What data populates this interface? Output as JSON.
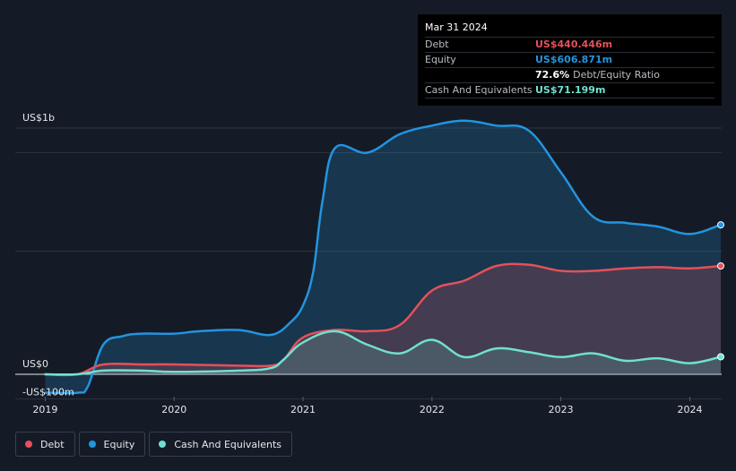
{
  "tooltip": {
    "date": "Mar 31 2024",
    "debt_label": "Debt",
    "debt_value": "US$440.446m",
    "equity_label": "Equity",
    "equity_value": "US$606.871m",
    "ratio_value": "72.6%",
    "ratio_label": "Debt/Equity Ratio",
    "cash_label": "Cash And Equivalents",
    "cash_value": "US$71.199m"
  },
  "legend": {
    "debt": "Debt",
    "equity": "Equity",
    "cash": "Cash And Equivalents"
  },
  "colors": {
    "debt": "#e5505a",
    "equity": "#2394df",
    "cash": "#70e0d0",
    "background": "#151b26"
  },
  "chart_data": {
    "type": "area",
    "title": "",
    "xlabel": "",
    "ylabel": "",
    "ylim": [
      -100,
      1000
    ],
    "y_tick_labels": [
      {
        "value": 1000,
        "label": "US$1b"
      },
      {
        "value": 0,
        "label": "US$0"
      },
      {
        "value": -100,
        "label": "-US$100m"
      }
    ],
    "y_gridlines": [
      1000,
      900,
      500,
      0,
      -100
    ],
    "x_range": [
      2018.99,
      2024.24
    ],
    "x_ticks": [
      {
        "value": 2019,
        "label": "2019"
      },
      {
        "value": 2020,
        "label": "2020"
      },
      {
        "value": 2021,
        "label": "2021"
      },
      {
        "value": 2022,
        "label": "2022"
      },
      {
        "value": 2023,
        "label": "2023"
      },
      {
        "value": 2024,
        "label": "2024"
      }
    ],
    "series": [
      {
        "name": "Equity",
        "key": "equity",
        "x": [
          2019.0,
          2019.25,
          2019.33,
          2019.45,
          2019.6,
          2019.75,
          2020.0,
          2020.2,
          2020.5,
          2020.75,
          2020.9,
          2021.0,
          2021.08,
          2021.15,
          2021.25,
          2021.5,
          2021.75,
          2022.0,
          2022.25,
          2022.5,
          2022.75,
          2023.0,
          2023.25,
          2023.5,
          2023.75,
          2024.0,
          2024.24
        ],
        "values": [
          -75,
          -75,
          -50,
          120,
          155,
          165,
          165,
          175,
          180,
          160,
          210,
          280,
          420,
          700,
          920,
          900,
          975,
          1010,
          1030,
          1010,
          990,
          820,
          640,
          615,
          600,
          570,
          607
        ]
      },
      {
        "name": "Debt",
        "key": "debt",
        "x": [
          2019.0,
          2019.25,
          2019.45,
          2019.75,
          2020.0,
          2020.5,
          2020.75,
          2020.85,
          2021.0,
          2021.25,
          2021.5,
          2021.75,
          2022.0,
          2022.25,
          2022.5,
          2022.75,
          2023.0,
          2023.25,
          2023.5,
          2023.75,
          2024.0,
          2024.24
        ],
        "values": [
          0,
          0,
          40,
          40,
          40,
          35,
          35,
          60,
          150,
          180,
          175,
          200,
          340,
          380,
          440,
          445,
          420,
          420,
          430,
          435,
          430,
          440
        ]
      },
      {
        "name": "Cash And Equivalents",
        "key": "cash",
        "x": [
          2019.0,
          2019.25,
          2019.45,
          2019.75,
          2020.0,
          2020.5,
          2020.75,
          2020.85,
          2021.0,
          2021.25,
          2021.5,
          2021.75,
          2022.0,
          2022.25,
          2022.5,
          2022.75,
          2023.0,
          2023.25,
          2023.5,
          2023.75,
          2024.0,
          2024.24
        ],
        "values": [
          0,
          0,
          15,
          15,
          10,
          15,
          25,
          60,
          130,
          175,
          120,
          85,
          140,
          70,
          105,
          90,
          70,
          85,
          55,
          65,
          45,
          71
        ]
      }
    ]
  }
}
